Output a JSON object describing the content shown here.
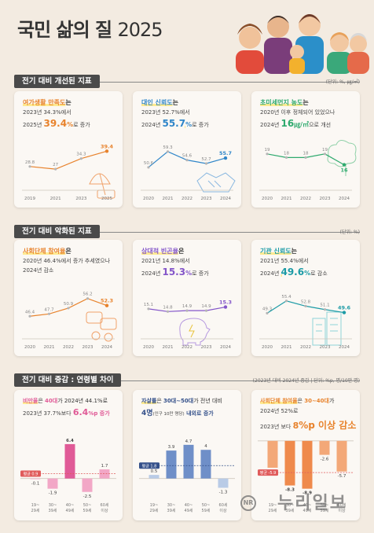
{
  "header": {
    "title_bold": "국민 삶의 질",
    "title_year": "2025"
  },
  "sections": {
    "improved": {
      "label": "전기 대비 개선된 지표",
      "unit": "(단위: %, ㎍/㎥)"
    },
    "worsened": {
      "label": "전기 대비 악화된 지표",
      "unit": "(단위: %)"
    },
    "age": {
      "label": "전기 대비 증감 : 연령별 차이",
      "unit": "(2023년 대비 2024년 증감 | 단위: %p, 명/10만 명)"
    }
  },
  "cards": {
    "leisure": {
      "name": "여가생활 만족도",
      "name_suffix": "는",
      "line2": "2023년 34.3%에서",
      "line3_pre": "2025년 ",
      "line3_val": "39.4",
      "line3_unit": "%",
      "line3_post": "로 증가"
    },
    "trust": {
      "name": "대인 신뢰도",
      "name_suffix": "는",
      "line2": "2023년 52.7%에서",
      "line3_pre": "2024년 ",
      "line3_val": "55.7",
      "line3_unit": "%",
      "line3_post": "로 증가"
    },
    "dust": {
      "name": "초미세먼지 농도",
      "name_suffix": "는",
      "line2": "2020년 이후 정체되어 있었으나",
      "line3_pre": "2024년 ",
      "line3_val": "16",
      "line3_unit": "㎍/㎥",
      "line3_post": "으로 개선"
    },
    "group": {
      "name": "사회단체 참여율",
      "name_suffix": "은",
      "line2": "2020년 46.4%에서 증가 추세였으나",
      "line3": "2024년 감소"
    },
    "depriv": {
      "name": "상대적 빈곤율",
      "name_suffix": "은",
      "line2": "2021년 14.8%에서",
      "line3_pre": "2024년 ",
      "line3_val": "15.3",
      "line3_unit": "%",
      "line3_post": "로 증가"
    },
    "inst": {
      "name": "기관 신뢰도",
      "name_suffix": "는",
      "line2": "2021년 55.4%에서",
      "line3_pre": "2024년 ",
      "line3_val": "49.6",
      "line3_unit": "%",
      "line3_post": "로 감소"
    },
    "obese": {
      "name_pre": "비만율",
      "name_mid": "은 ",
      "name_age": "40대",
      "name_post": "가 2024년 44.1%로",
      "line2_pre": "2023년 37.7%보다 ",
      "line2_val": "6.4",
      "line2_unit": "%p",
      "line2_post": " 증가"
    },
    "suicide": {
      "name_pre": "자살률",
      "name_mid": "은 ",
      "name_age": "30대~50대",
      "name_post": "가 전년 대비",
      "line2_val": "4명",
      "line2_note": "(인구 10만 명당)",
      "line2_post": " 내외로 증가"
    },
    "group2": {
      "name_pre": "사회단체 참여율",
      "name_mid": "은 ",
      "name_age": "30~40대",
      "name_post": "가",
      "line2": "2024년 52%로",
      "line3_pre": "2023년 보다 ",
      "line3_val": "8",
      "line3_unit": "%p",
      "line3_post": " 이상 감소"
    }
  },
  "watermark": {
    "circle": "NR",
    "text": "누리일보"
  },
  "colors": {
    "leisure": "#e8832d",
    "trust": "#2f86c9",
    "dust": "#2faa6e",
    "group": "#e8832d",
    "depriv": "#8456c9",
    "inst": "#1c9ba6",
    "obese": "#f2a7c6",
    "obese_dark": "#e05b97",
    "suicide": "#6f8fc8",
    "suicide_light": "#b9cbe6",
    "group2": "#f3a878",
    "avg_red": "#e05b5b",
    "avg_blue": "#34508a"
  },
  "chart_data": [
    {
      "id": "leisure",
      "type": "line",
      "x": [
        "2019",
        "2021",
        "2023",
        "2025"
      ],
      "values": [
        28.8,
        27.0,
        34.3,
        39.4
      ],
      "ylim": [
        20,
        45
      ]
    },
    {
      "id": "trust",
      "type": "line",
      "x": [
        "2020",
        "2021",
        "2022",
        "2023",
        "2024"
      ],
      "values": [
        50.6,
        59.3,
        54.6,
        52.7,
        55.7
      ],
      "ylim": [
        44,
        64
      ]
    },
    {
      "id": "dust",
      "type": "line",
      "x": [
        "2020",
        "2021",
        "2022",
        "2023",
        "2024"
      ],
      "values": [
        19,
        18,
        18,
        19,
        16
      ],
      "ylim": [
        12,
        22
      ]
    },
    {
      "id": "group",
      "type": "line",
      "x": [
        "2020",
        "2021",
        "2022",
        "2023",
        "2024"
      ],
      "values": [
        46.4,
        47.7,
        50.9,
        56.2,
        52.3
      ],
      "ylim": [
        40,
        60
      ]
    },
    {
      "id": "depriv",
      "type": "line",
      "x": [
        "2020",
        "2021",
        "2022",
        "2023",
        "2024"
      ],
      "values": [
        15.1,
        14.8,
        14.9,
        14.9,
        15.3
      ],
      "ylim": [
        13,
        17
      ]
    },
    {
      "id": "inst",
      "type": "line",
      "x": [
        "2020",
        "2021",
        "2022",
        "2023",
        "2024"
      ],
      "values": [
        49.3,
        55.4,
        52.8,
        51.1,
        49.6
      ],
      "ylim": [
        42,
        60
      ]
    },
    {
      "id": "obese",
      "type": "bar",
      "categories": [
        "19~\n29세",
        "30~\n39세",
        "40~\n49세",
        "50~\n59세",
        "60세\n이상"
      ],
      "values": [
        -0.1,
        -1.9,
        6.4,
        -2.5,
        1.7
      ],
      "avg_label": "평균 0.9",
      "avg": 0.9,
      "ylim": [
        -4,
        8
      ]
    },
    {
      "id": "suicide",
      "type": "bar",
      "categories": [
        "19~\n29세",
        "30~\n39세",
        "40~\n49세",
        "50~\n59세",
        "60세\n이상"
      ],
      "values": [
        0.5,
        3.9,
        4.7,
        4.0,
        -1.3
      ],
      "avg_label": "평균 1.8",
      "avg": 1.8,
      "ylim": [
        -3,
        6
      ]
    },
    {
      "id": "group2",
      "type": "bar",
      "categories": [
        "19~\n29세",
        "30~\n39세",
        "40~\n49세",
        "50~\n59세",
        "60세\n이상"
      ],
      "values": [
        -5.0,
        -8.3,
        -8.9,
        -2.6,
        -5.7
      ],
      "avg_label": "평균 -5.9",
      "avg": -5.9,
      "ylim": [
        -11,
        1
      ]
    }
  ]
}
